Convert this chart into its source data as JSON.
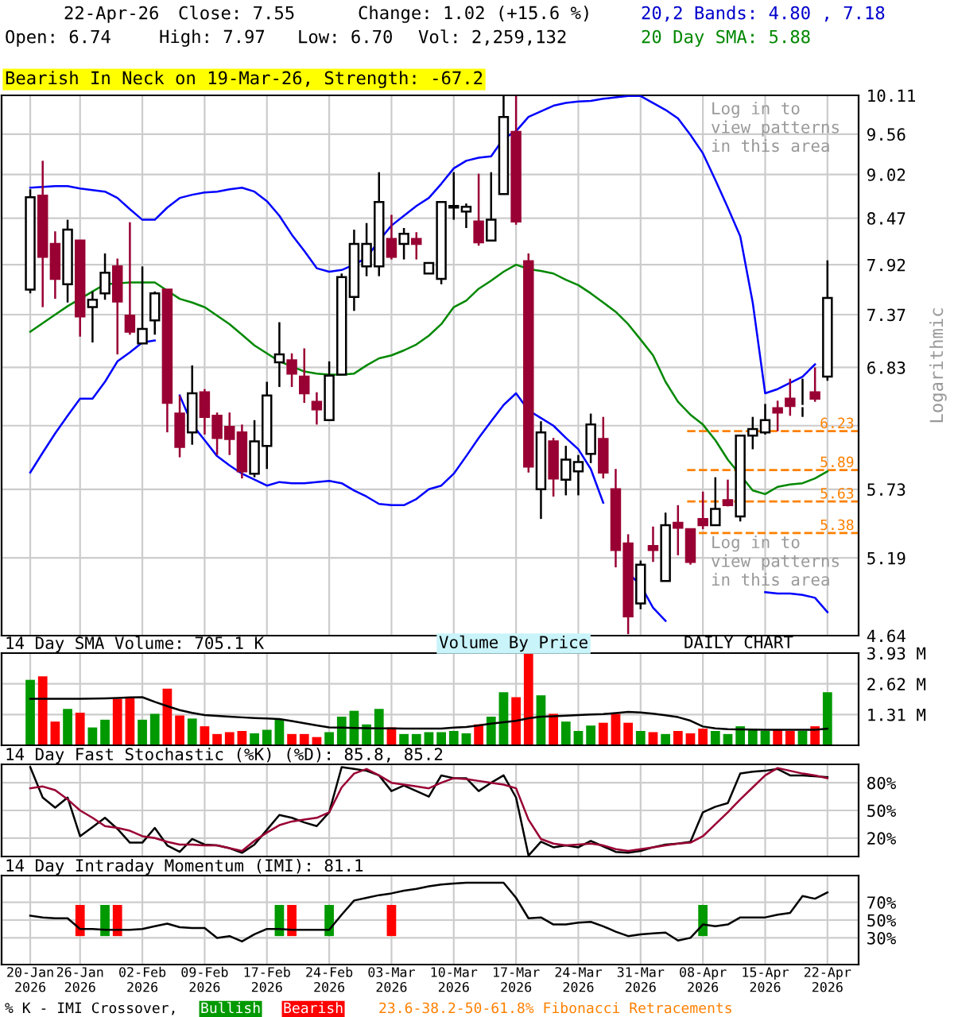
{
  "chart_data": [
    {
      "type": "candlestick",
      "log": true,
      "grid": true,
      "tick_labels": "y",
      "ylabel": "Logarithmic",
      "categories": [
        null,
        null,
        null,
        null,
        null,
        null,
        null,
        null,
        null,
        null,
        null,
        null,
        null,
        null,
        null,
        null,
        null,
        null,
        null,
        null,
        null,
        null,
        null,
        null,
        null,
        null,
        null,
        null,
        null,
        null,
        null,
        null,
        null,
        null,
        null,
        null,
        null,
        null,
        null,
        null,
        null,
        null,
        null,
        null,
        null,
        null,
        null,
        null,
        null,
        null,
        null,
        null,
        null,
        null,
        null,
        null,
        null,
        null,
        null,
        null,
        null,
        null,
        null,
        null,
        null
      ],
      "ylim": [
        4.64,
        10.11
      ],
      "yticks": [
        4.64,
        5.19,
        5.73,
        {
          "value": 6.28,
          "label": null
        },
        6.83,
        7.37,
        7.92,
        8.47,
        9.02,
        9.56,
        10.11
      ],
      "ohlc": [
        [
          7.64,
          8.83,
          7.6,
          8.73
        ],
        [
          8.75,
          9.2,
          7.45,
          8.01
        ],
        [
          8.16,
          8.31,
          7.54,
          7.76
        ],
        [
          7.7,
          8.45,
          7.5,
          8.33
        ],
        [
          8.2,
          8.2,
          7.14,
          7.35
        ],
        [
          7.45,
          7.62,
          7.08,
          7.53
        ],
        [
          7.6,
          8.05,
          7.53,
          7.83
        ],
        [
          7.9,
          7.99,
          6.96,
          7.51
        ],
        [
          7.36,
          8.42,
          7.16,
          7.19
        ],
        [
          7.07,
          7.9,
          7.07,
          7.22
        ],
        [
          7.31,
          7.62,
          7.16,
          7.6
        ],
        [
          7.64,
          7.64,
          6.22,
          6.49
        ],
        [
          6.39,
          6.56,
          6.0,
          6.09
        ],
        [
          6.22,
          6.85,
          6.11,
          6.58
        ],
        [
          6.59,
          6.62,
          6.2,
          6.36
        ],
        [
          6.37,
          6.4,
          6.02,
          6.17
        ],
        [
          6.27,
          6.4,
          6.02,
          6.16
        ],
        [
          6.22,
          6.29,
          5.82,
          5.88
        ],
        [
          5.86,
          6.33,
          5.83,
          6.14
        ],
        [
          6.1,
          6.69,
          5.9,
          6.56
        ],
        [
          6.88,
          7.29,
          6.64,
          6.96
        ],
        [
          6.9,
          6.97,
          6.64,
          6.77
        ],
        [
          6.74,
          7.02,
          6.49,
          6.58
        ],
        [
          6.5,
          6.59,
          6.29,
          6.43
        ],
        [
          6.33,
          6.89,
          6.33,
          6.75
        ],
        [
          6.76,
          7.82,
          6.76,
          7.78
        ],
        [
          7.56,
          8.33,
          7.41,
          8.16
        ],
        [
          7.9,
          8.41,
          7.79,
          8.16
        ],
        [
          7.9,
          9.05,
          7.79,
          8.67
        ],
        [
          8.22,
          8.51,
          7.98,
          8.01
        ],
        [
          8.16,
          8.35,
          7.98,
          8.28
        ],
        [
          8.22,
          8.3,
          7.98,
          8.16
        ],
        [
          7.82,
          7.94,
          7.82,
          7.94
        ],
        [
          7.76,
          8.67,
          7.7,
          8.67
        ],
        [
          8.6,
          9.05,
          8.45,
          8.62
        ],
        [
          8.55,
          8.65,
          8.35,
          8.61
        ],
        [
          8.43,
          9.03,
          8.14,
          8.18
        ],
        [
          8.2,
          9.05,
          8.2,
          8.45
        ],
        [
          8.77,
          10.1,
          8.77,
          9.8
        ],
        [
          9.59,
          10.1,
          8.39,
          8.43
        ],
        [
          7.96,
          8.05,
          5.87,
          5.92
        ],
        [
          5.73,
          6.32,
          5.49,
          6.22
        ],
        [
          6.14,
          6.17,
          5.67,
          5.82
        ],
        [
          5.81,
          6.1,
          5.68,
          5.98
        ],
        [
          5.88,
          6.02,
          5.68,
          5.96
        ],
        [
          6.03,
          6.39,
          5.95,
          6.29
        ],
        [
          6.16,
          6.36,
          5.82,
          5.87
        ],
        [
          5.73,
          5.9,
          5.12,
          5.25
        ],
        [
          5.3,
          5.37,
          4.65,
          4.77
        ],
        [
          4.86,
          5.17,
          4.82,
          5.14
        ],
        [
          5.28,
          5.43,
          5.16,
          5.25
        ],
        [
          5.02,
          5.54,
          5.02,
          5.44
        ],
        [
          5.46,
          5.6,
          5.21,
          5.42
        ],
        [
          5.41,
          5.41,
          5.14,
          5.16
        ],
        [
          5.49,
          5.71,
          5.41,
          5.44
        ],
        [
          5.44,
          5.83,
          5.44,
          5.57
        ],
        [
          5.64,
          5.81,
          5.59,
          5.6
        ],
        [
          5.51,
          6.19,
          5.47,
          6.19
        ],
        [
          6.19,
          6.36,
          6.07,
          6.25
        ],
        [
          6.22,
          6.48,
          6.2,
          6.33
        ],
        [
          6.44,
          6.51,
          6.23,
          6.4
        ],
        [
          6.53,
          6.72,
          6.37,
          6.46
        ],
        [
          6.46,
          6.72,
          6.36,
          6.46
        ],
        [
          6.59,
          6.83,
          6.5,
          6.53
        ],
        [
          6.74,
          7.97,
          6.7,
          7.55
        ]
      ],
      "colors": [
        "#ffffff",
        "#990033",
        "#990033",
        "#ffffff",
        "#990033",
        "#ffffff",
        "#ffffff",
        "#990033",
        "#990033",
        "#ffffff",
        "#ffffff",
        "#990033",
        "#990033",
        "#ffffff",
        "#990033",
        "#990033",
        "#990033",
        "#990033",
        "#ffffff",
        "#ffffff",
        "#ffffff",
        "#990033",
        "#990033",
        "#990033",
        "#ffffff",
        "#ffffff",
        "#ffffff",
        "#ffffff",
        "#ffffff",
        "#990033",
        "#ffffff",
        "#990033",
        "#ffffff",
        "#ffffff",
        "#ffffff",
        "#ffffff",
        "#990033",
        "#ffffff",
        "#ffffff",
        "#990033",
        "#990033",
        "#ffffff",
        "#990033",
        "#ffffff",
        "#ffffff",
        "#ffffff",
        "#990033",
        "#990033",
        "#990033",
        "#ffffff",
        "#990033",
        "#ffffff",
        "#990033",
        "#990033",
        "#990033",
        "#ffffff",
        "#990033",
        "#ffffff",
        "#ffffff",
        "#ffffff",
        "#990033",
        "#990033",
        "#ffffff",
        "#990033",
        "#ffffff"
      ],
      "series": [
        {
          "type": "line",
          "color": "#0000ff",
          "values": [
            8.85,
            8.86,
            8.87,
            8.87,
            8.84,
            8.82,
            8.8,
            8.72,
            8.58,
            8.45,
            8.45,
            8.6,
            8.72,
            8.76,
            8.79,
            8.8,
            8.83,
            8.85,
            8.8,
            8.68,
            8.5,
            8.27,
            8.08,
            7.88,
            7.84,
            7.86,
            7.92,
            8.0,
            8.2,
            8.38,
            8.5,
            8.62,
            8.72,
            8.9,
            9.1,
            9.2,
            9.24,
            9.26,
            9.5,
            9.6,
            9.8,
            9.88,
            9.96,
            10.0,
            10.02,
            10.03,
            10.06,
            10.08,
            10.1,
            10.1,
            10.0,
            9.9,
            9.78,
            9.55,
            9.3,
            8.95,
            8.6,
            8.25,
            7.5,
            6.58,
            6.62,
            6.68,
            6.74,
            6.86,
            null
          ]
        },
        {
          "type": "line",
          "color": "#0000ff",
          "values": [
            5.87,
            6.04,
            6.21,
            6.37,
            6.53,
            6.53,
            6.69,
            6.89,
            6.98,
            7.08,
            7.1,
            null,
            6.56,
            6.29,
            6.15,
            6.01,
            5.93,
            5.86,
            5.81,
            5.76,
            5.79,
            5.78,
            5.78,
            5.79,
            5.8,
            5.78,
            5.72,
            5.67,
            5.61,
            5.6,
            5.6,
            5.65,
            5.73,
            5.76,
            5.86,
            6.01,
            6.17,
            6.32,
            6.47,
            6.58,
            6.42,
            6.35,
            6.28,
            6.17,
            6.07,
            5.9,
            5.62,
            null,
            5.08,
            4.99,
            4.83,
            4.74,
            null,
            null,
            null,
            null,
            null,
            null,
            null,
            4.94,
            4.93,
            4.93,
            4.92,
            4.9,
            4.8
          ]
        },
        {
          "type": "line",
          "color": "#008800",
          "values": [
            7.19,
            7.28,
            7.37,
            7.46,
            7.54,
            7.62,
            7.7,
            7.71,
            7.72,
            7.72,
            7.72,
            7.63,
            7.54,
            7.5,
            7.45,
            7.36,
            7.27,
            7.16,
            7.05,
            6.97,
            6.89,
            6.84,
            6.79,
            6.77,
            6.76,
            6.76,
            6.77,
            6.85,
            6.92,
            6.95,
            7.0,
            7.06,
            7.15,
            7.27,
            7.45,
            7.52,
            7.65,
            7.74,
            7.84,
            7.92,
            7.87,
            7.85,
            7.82,
            7.75,
            7.69,
            7.6,
            7.5,
            7.4,
            7.27,
            7.11,
            6.95,
            6.69,
            6.5,
            6.38,
            6.29,
            6.15,
            5.98,
            5.85,
            5.72,
            5.69,
            5.75,
            5.77,
            5.78,
            5.82,
            5.88
          ]
        }
      ],
      "ref_lines": [
        {
          "axis": "y",
          "value": 6.23,
          "label": "6.23",
          "color": "#ff8000",
          "line_style": "dashed"
        },
        {
          "axis": "y",
          "value": 5.89,
          "label": "5.89",
          "color": "#ff8000",
          "line_style": "dashed"
        },
        {
          "axis": "y",
          "value": 5.63,
          "label": "5.63",
          "color": "#ff8000",
          "line_style": "dashed"
        },
        {
          "axis": "y",
          "value": 5.38,
          "label": "5.38",
          "color": "#ff8000",
          "line_style": "dashed"
        }
      ],
      "annotations": [
        "22-Apr-26",
        "Close: 7.55",
        "Change: 1.02 (+15.6 %)",
        "20,2 Bands: 4.80 , 7.18",
        "Open: 6.74",
        "High: 7.97",
        "Low: 6.70",
        "Vol: 2,259,132",
        "20 Day SMA: 5.88",
        "Bearish In Neck on 19-Mar-26, Strength: -67.2",
        "Log in to\nview patterns\nin this area",
        "Log in to\nview patterns\nin this area",
        "Volume By Price",
        "DAILY CHART",
        "23.6-38.2-50-61.8% Fibonacci Retracements"
      ]
    },
    {
      "type": "bar",
      "grid": true,
      "tick_labels": "y",
      "title": "14 Day SMA Volume: 705.1 K",
      "categories": [
        null,
        null,
        null,
        null,
        null,
        null,
        null,
        null,
        null,
        null,
        null,
        null,
        null,
        null,
        null,
        null,
        null,
        null,
        null,
        null,
        null,
        null,
        null,
        null,
        null,
        null,
        null,
        null,
        null,
        null,
        null,
        null,
        null,
        null,
        null,
        null,
        null,
        null,
        null,
        null,
        null,
        null,
        null,
        null,
        null,
        null,
        null,
        null,
        null,
        null,
        null,
        null,
        null,
        null,
        null,
        null,
        null,
        null,
        null,
        null,
        null,
        null,
        null,
        null,
        null
      ],
      "ylim": [
        0,
        3.93
      ],
      "yticks": [
        {
          "value": 1.31,
          "label": "1.31 M"
        },
        {
          "value": 2.62,
          "label": "2.62 M"
        },
        {
          "value": 3.93,
          "label": "3.93 M"
        }
      ],
      "series": [
        {
          "type": "bar",
          "values": [
            2.79,
            2.94,
            1.01,
            1.55,
            1.39,
            0.76,
            1.09,
            1.98,
            2.03,
            1.09,
            1.34,
            2.41,
            1.27,
            1.14,
            0.81,
            0.48,
            0.56,
            0.61,
            0.51,
            0.66,
            1.09,
            0.48,
            0.48,
            0.35,
            0.56,
            1.22,
            1.47,
            0.89,
            1.55,
            0.76,
            0.48,
            0.48,
            0.56,
            0.56,
            0.61,
            0.51,
            0.89,
            1.22,
            2.26,
            2.05,
            3.93,
            2.13,
            1.34,
            1.01,
            0.61,
            0.84,
            0.96,
            1.34,
            0.96,
            0.61,
            0.56,
            0.48,
            0.61,
            0.51,
            0.71,
            0.61,
            0.48,
            0.81,
            0.71,
            0.61,
            0.66,
            0.61,
            0.61,
            0.81,
            2.26
          ],
          "colors": [
            "#009900",
            "#ff0000",
            "#ff0000",
            "#009900",
            "#ff0000",
            "#009900",
            "#009900",
            "#ff0000",
            "#ff0000",
            "#009900",
            "#009900",
            "#ff0000",
            "#ff0000",
            "#009900",
            "#ff0000",
            "#ff0000",
            "#ff0000",
            "#ff0000",
            "#009900",
            "#009900",
            "#009900",
            "#ff0000",
            "#ff0000",
            "#ff0000",
            "#009900",
            "#009900",
            "#009900",
            "#009900",
            "#009900",
            "#ff0000",
            "#009900",
            "#009900",
            "#009900",
            "#009900",
            "#009900",
            "#009900",
            "#ff0000",
            "#009900",
            "#009900",
            "#ff0000",
            "#ff0000",
            "#009900",
            "#ff0000",
            "#009900",
            "#009900",
            "#009900",
            "#ff0000",
            "#ff0000",
            "#ff0000",
            "#009900",
            "#ff0000",
            "#009900",
            "#ff0000",
            "#ff0000",
            "#ff0000",
            "#009900",
            "#009900",
            "#009900",
            "#009900",
            "#009900",
            "#ff0000",
            "#ff0000",
            "#009900",
            "#ff0000",
            "#009900"
          ]
        },
        {
          "type": "line",
          "color": "#000000",
          "values": [
            1.98,
            1.98,
            1.98,
            1.98,
            1.98,
            1.99,
            2.0,
            2.02,
            2.04,
            2.05,
            1.85,
            1.67,
            1.5,
            1.38,
            1.29,
            1.25,
            1.22,
            1.19,
            1.16,
            1.14,
            1.12,
            1.03,
            0.94,
            0.85,
            0.76,
            0.75,
            0.74,
            0.73,
            0.72,
            0.72,
            0.71,
            0.71,
            0.71,
            0.71,
            0.75,
            0.78,
            0.85,
            0.92,
            0.98,
            1.04,
            1.15,
            1.22,
            1.24,
            1.26,
            1.29,
            1.31,
            1.33,
            1.37,
            1.42,
            1.4,
            1.35,
            1.28,
            1.2,
            1.05,
            0.8,
            0.72,
            0.69,
            0.68,
            0.67,
            0.66,
            0.66,
            0.66,
            0.66,
            0.66,
            0.71
          ]
        }
      ]
    },
    {
      "type": "line",
      "grid": true,
      "tick_labels": "y",
      "title": "14 Day Fast Stochastic (%K) (%D): 85.8, 85.2",
      "categories": [
        null,
        null,
        null,
        null,
        null,
        null,
        null,
        null,
        null,
        null,
        null,
        null,
        null,
        null,
        null,
        null,
        null,
        null,
        null,
        null,
        null,
        null,
        null,
        null,
        null,
        null,
        null,
        null,
        null,
        null,
        null,
        null,
        null,
        null,
        null,
        null,
        null,
        null,
        null,
        null,
        null,
        null,
        null,
        null,
        null,
        null,
        null,
        null,
        null,
        null,
        null,
        null,
        null,
        null,
        null,
        null,
        null,
        null,
        null,
        null,
        null,
        null,
        null,
        null,
        null
      ],
      "ylim": [
        0,
        100
      ],
      "yticks": [
        {
          "value": 20,
          "label": "20%"
        },
        {
          "value": 50,
          "label": "50%"
        },
        {
          "value": 80,
          "label": "80%"
        }
      ],
      "series": [
        {
          "type": "line",
          "color": "#000000",
          "values": [
            97,
            64,
            53,
            64,
            22,
            32,
            42,
            30,
            15,
            15,
            31,
            12,
            5,
            19,
            13,
            12,
            9,
            4,
            13,
            29,
            45,
            42,
            37,
            33,
            48,
            97,
            95,
            93,
            88,
            71,
            77,
            71,
            65,
            88,
            85,
            85,
            71,
            80,
            88,
            64,
            1,
            16,
            10,
            12,
            10,
            17,
            11,
            5,
            4,
            6,
            10,
            13,
            14,
            16,
            48,
            54,
            58,
            90,
            92,
            93,
            95,
            88,
            88,
            87,
            86
          ]
        },
        {
          "type": "line",
          "color": "#990033",
          "values": [
            74,
            76,
            72,
            62,
            50,
            42,
            33,
            31,
            28,
            22,
            20,
            16,
            13,
            13,
            12,
            12,
            9,
            6,
            17,
            26,
            34,
            38,
            40,
            42,
            48,
            75,
            90,
            95,
            88,
            80,
            78,
            76,
            74,
            80,
            85,
            84,
            82,
            80,
            78,
            74,
            40,
            19,
            14,
            12,
            13,
            14,
            12,
            8,
            6,
            8,
            10,
            12,
            14,
            15,
            22,
            35,
            48,
            62,
            75,
            88,
            96,
            93,
            90,
            88,
            85
          ]
        }
      ]
    },
    {
      "type": "line",
      "grid": true,
      "legend": "bottom",
      "title": "14 Day Intraday Momentum (IMI): 81.1",
      "categories": [
        "20-Jan\n2026",
        null,
        null,
        null,
        "26-Jan\n2026",
        null,
        null,
        null,
        null,
        "02-Feb\n2026",
        null,
        null,
        null,
        null,
        "09-Feb\n2026",
        null,
        null,
        null,
        null,
        "17-Feb\n2026",
        null,
        null,
        null,
        null,
        "24-Feb\n2026",
        null,
        null,
        null,
        null,
        "03-Mar\n2026",
        null,
        null,
        null,
        null,
        "10-Mar\n2026",
        null,
        null,
        null,
        null,
        "17-Mar\n2026",
        null,
        null,
        null,
        null,
        "24-Mar\n2026",
        null,
        null,
        null,
        null,
        "31-Mar\n2026",
        null,
        null,
        null,
        null,
        "08-Apr\n2026",
        null,
        null,
        null,
        null,
        "15-Apr\n2026",
        null,
        null,
        null,
        null,
        "22-Apr\n2026"
      ],
      "ylim": [
        0,
        100
      ],
      "yticks": [
        {
          "value": 30,
          "label": "30%"
        },
        {
          "value": 50,
          "label": "50%"
        },
        {
          "value": 70,
          "label": "70%"
        }
      ],
      "series": [
        {
          "type": "line",
          "color": "#000000",
          "values": [
            55,
            53,
            52,
            52,
            40,
            40,
            39,
            39,
            39,
            40,
            43,
            46,
            42,
            41,
            41,
            30,
            32,
            26,
            34,
            40,
            40,
            39,
            39,
            39,
            39,
            56,
            72,
            75,
            78,
            80,
            83,
            85,
            88,
            90,
            91,
            92,
            92,
            92,
            92,
            75,
            52,
            53,
            45,
            45,
            47,
            48,
            43,
            37,
            32,
            34,
            35,
            36,
            27,
            30,
            45,
            43,
            45,
            53,
            53,
            53,
            56,
            58,
            77,
            74,
            81
          ]
        },
        {
          "type": "bar",
          "name": "Bullish",
          "color": "#009900",
          "values": [
            null,
            null,
            null,
            null,
            null,
            null,
            35,
            null,
            null,
            null,
            null,
            null,
            null,
            null,
            null,
            null,
            null,
            null,
            null,
            null,
            35,
            null,
            null,
            null,
            35,
            null,
            null,
            null,
            null,
            null,
            null,
            null,
            null,
            null,
            null,
            null,
            null,
            null,
            null,
            null,
            null,
            null,
            null,
            null,
            null,
            null,
            null,
            null,
            null,
            null,
            null,
            null,
            null,
            null,
            35,
            null,
            null,
            null,
            null,
            null,
            null,
            null,
            null,
            null,
            null
          ],
          "base": [
            null,
            null,
            null,
            null,
            null,
            null,
            32,
            null,
            null,
            null,
            null,
            null,
            null,
            null,
            null,
            null,
            null,
            null,
            null,
            null,
            32,
            null,
            null,
            null,
            32,
            null,
            null,
            null,
            null,
            null,
            null,
            null,
            null,
            null,
            null,
            null,
            null,
            null,
            null,
            null,
            null,
            null,
            null,
            null,
            null,
            null,
            null,
            null,
            null,
            null,
            null,
            null,
            null,
            null,
            32,
            null,
            null,
            null,
            null,
            null,
            null,
            null,
            null,
            null,
            null
          ]
        },
        {
          "type": "bar",
          "name": "Bearish",
          "color": "#ff0000",
          "values": [
            null,
            null,
            null,
            null,
            35,
            null,
            null,
            35,
            null,
            null,
            null,
            null,
            null,
            null,
            null,
            null,
            null,
            null,
            null,
            null,
            null,
            35,
            null,
            null,
            null,
            null,
            null,
            null,
            null,
            35,
            null,
            null,
            null,
            null,
            null,
            null,
            null,
            null,
            null,
            null,
            null,
            null,
            null,
            null,
            null,
            null,
            null,
            null,
            null,
            null,
            null,
            null,
            null,
            null,
            null,
            null,
            null,
            null,
            null,
            null,
            null,
            null,
            null,
            null,
            null
          ],
          "base": [
            null,
            null,
            null,
            null,
            32,
            null,
            null,
            32,
            null,
            null,
            null,
            null,
            null,
            null,
            null,
            null,
            null,
            null,
            null,
            null,
            null,
            32,
            null,
            null,
            null,
            null,
            null,
            null,
            null,
            32,
            null,
            null,
            null,
            null,
            null,
            null,
            null,
            null,
            null,
            null,
            null,
            null,
            null,
            null,
            null,
            null,
            null,
            null,
            null,
            null,
            null,
            null,
            null,
            null,
            null,
            null,
            null,
            null,
            null,
            null,
            null,
            null,
            null,
            null,
            null
          ]
        }
      ],
      "annotations": [
        "% K - IMI Crossover,"
      ]
    }
  ]
}
